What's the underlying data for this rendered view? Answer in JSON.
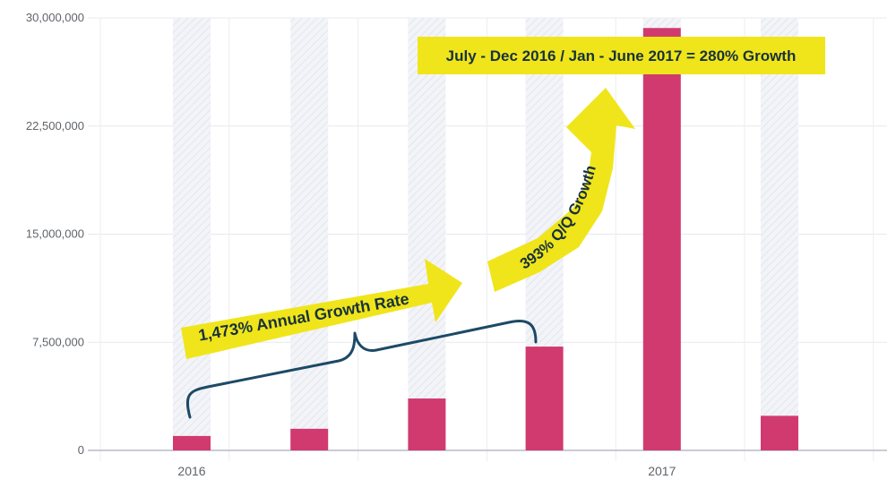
{
  "chart_data": {
    "type": "bar",
    "title": "",
    "xlabel": "",
    "ylabel": "",
    "ylim": [
      0,
      30000000
    ],
    "yticks": [
      0,
      7500000,
      15000000,
      22500000,
      30000000
    ],
    "ytick_labels": [
      "0",
      "7,500,000",
      "15,000,000",
      "22,500,000",
      "30,000,000"
    ],
    "x_labels": [
      {
        "at_index": 0,
        "label": "2016"
      },
      {
        "at_index": 4,
        "label": "2017"
      }
    ],
    "values": [
      1000000,
      1500000,
      3600000,
      7200000,
      29300000,
      2400000
    ],
    "bar_color": "#d13a6e",
    "background_bar_color": "#eef0f5",
    "grid": true,
    "annotations": {
      "annual_growth": "1,473% Annual Growth Rate",
      "qq_growth": "393% Q/Q Growth",
      "half_year_growth": "July - Dec 2016 / Jan - June 2017 = 280% Growth",
      "highlight_color": "#f0e51a",
      "brace_color": "#1c4a66"
    }
  }
}
